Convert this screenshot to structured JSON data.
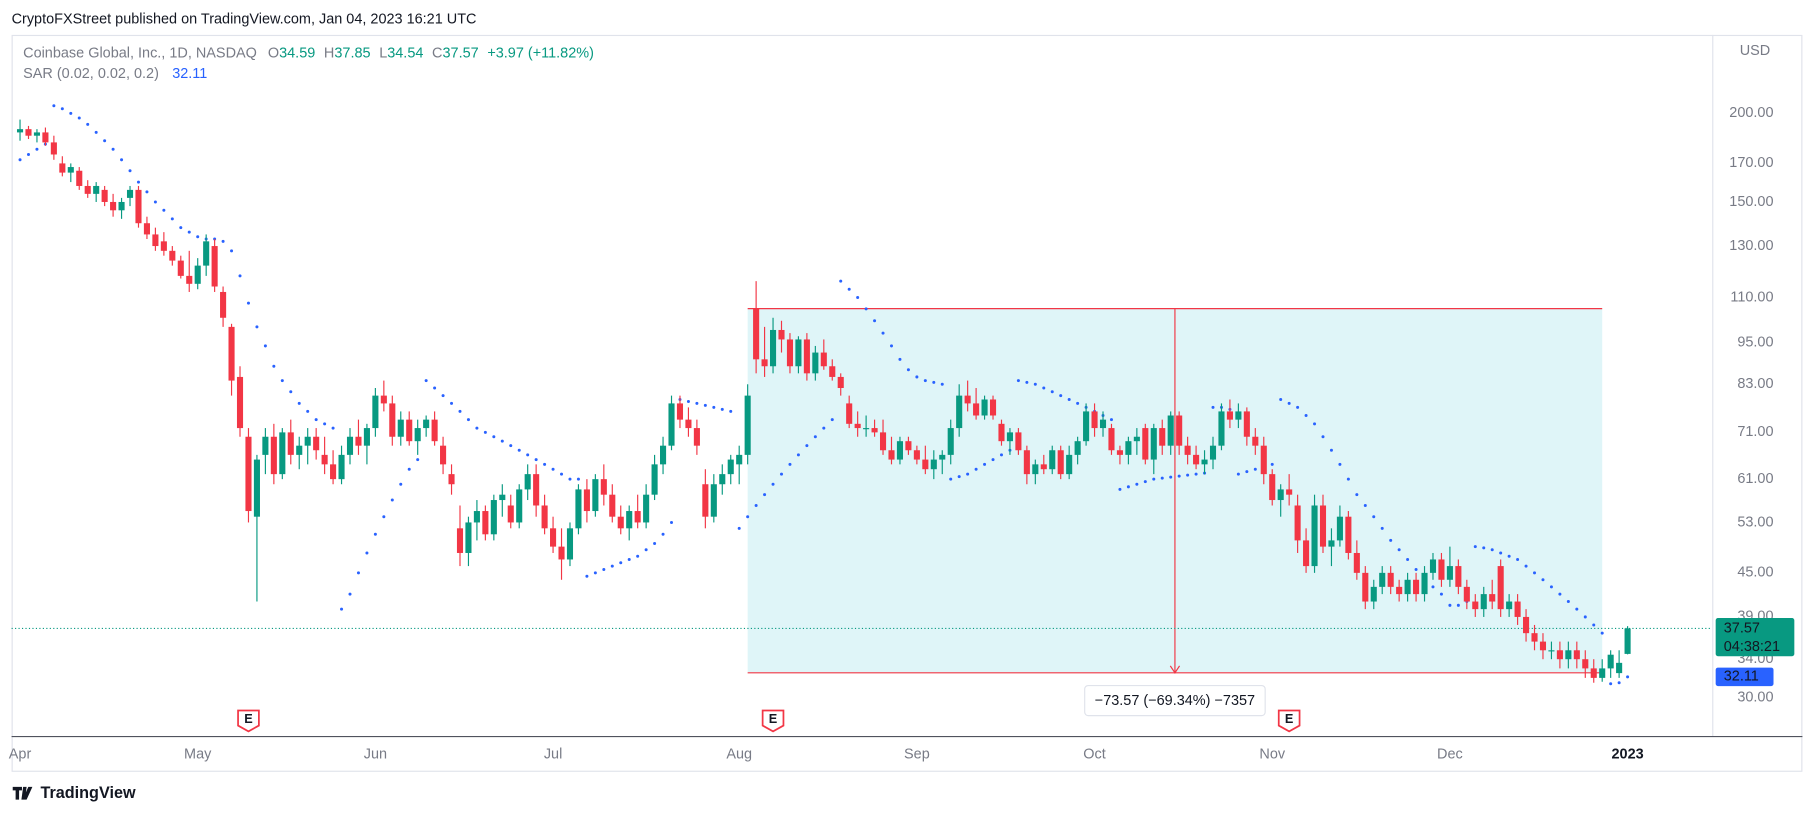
{
  "header": {
    "published": "CryptoFXStreet published on TradingView.com, Jan 04, 2023 16:21 UTC"
  },
  "brand": "TradingView",
  "chart_data": {
    "type": "candlestick",
    "title": "Coinbase Global, Inc., 1D, NASDAQ",
    "ohlc_prefixes": [
      "O",
      "H",
      "L",
      "C"
    ],
    "change_label": "+3.97 (+11.82%)",
    "currency": "USD",
    "countdown": "04:38:21",
    "up_color": "#089981",
    "down_color": "#f23645",
    "log_scale": true,
    "grid": false,
    "xlim": [
      -1,
      200
    ],
    "xticks": [
      {
        "value": 0,
        "label": "Apr"
      },
      {
        "value": 21,
        "label": "May"
      },
      {
        "value": 42,
        "label": "Jun"
      },
      {
        "value": 63,
        "label": "Jul"
      },
      {
        "value": 85,
        "label": "Aug"
      },
      {
        "value": 106,
        "label": "Sep"
      },
      {
        "value": 127,
        "label": "Oct"
      },
      {
        "value": 148,
        "label": "Nov"
      },
      {
        "value": 169,
        "label": "Dec"
      },
      {
        "value": 190,
        "label": "2023"
      }
    ],
    "ylim": [
      26.5,
      258
    ],
    "yticks": [
      {
        "value": 30,
        "label": "30.00"
      },
      {
        "value": 34,
        "label": "34.00"
      },
      {
        "value": 39,
        "label": "39.00"
      },
      {
        "value": 45,
        "label": "45.00"
      },
      {
        "value": 53,
        "label": "53.00"
      },
      {
        "value": 61,
        "label": "61.00"
      },
      {
        "value": 71,
        "label": "71.00"
      },
      {
        "value": 83,
        "label": "83.00"
      },
      {
        "value": 95,
        "label": "95.00"
      },
      {
        "value": 110,
        "label": "110.00"
      },
      {
        "value": 130,
        "label": "130.00"
      },
      {
        "value": 150,
        "label": "150.00"
      },
      {
        "value": 170,
        "label": "170.00"
      },
      {
        "value": 200,
        "label": "200.00"
      }
    ],
    "ohlc": [
      [
        188,
        196,
        183,
        190
      ],
      [
        190,
        192,
        184,
        186
      ],
      [
        186,
        190,
        182,
        188
      ],
      [
        188,
        191,
        180,
        182
      ],
      [
        182,
        186,
        172,
        175
      ],
      [
        170,
        174,
        163,
        165
      ],
      [
        165,
        170,
        160,
        168
      ],
      [
        166,
        168,
        156,
        158
      ],
      [
        158,
        161,
        152,
        154
      ],
      [
        154,
        160,
        150,
        158
      ],
      [
        156,
        158,
        148,
        150
      ],
      [
        150,
        154,
        143,
        146
      ],
      [
        146,
        152,
        142,
        150
      ],
      [
        152,
        158,
        148,
        156
      ],
      [
        156,
        158,
        138,
        140
      ],
      [
        140,
        143,
        133,
        135
      ],
      [
        135,
        138,
        128,
        130
      ],
      [
        132,
        136,
        126,
        128
      ],
      [
        128,
        130,
        122,
        124
      ],
      [
        124,
        126,
        117,
        118
      ],
      [
        118,
        128,
        112,
        115
      ],
      [
        115,
        125,
        113,
        122
      ],
      [
        122,
        135,
        118,
        132
      ],
      [
        130,
        133,
        112,
        114
      ],
      [
        112,
        114,
        100,
        103
      ],
      [
        100,
        101,
        80,
        84
      ],
      [
        85,
        88,
        70,
        72
      ],
      [
        70,
        72,
        53,
        55
      ],
      [
        54,
        66,
        41,
        65
      ],
      [
        66,
        72,
        62,
        70
      ],
      [
        70,
        73,
        60,
        62
      ],
      [
        62,
        72,
        61,
        71
      ],
      [
        71,
        74,
        64,
        66
      ],
      [
        66,
        70,
        63,
        68
      ],
      [
        68,
        72,
        64,
        70
      ],
      [
        70,
        72,
        65,
        67
      ],
      [
        66,
        70,
        62,
        64
      ],
      [
        64,
        67,
        60,
        61
      ],
      [
        61,
        68,
        60,
        66
      ],
      [
        66,
        72,
        64,
        70
      ],
      [
        70,
        74,
        66,
        68
      ],
      [
        68,
        73,
        64,
        72
      ],
      [
        72,
        82,
        70,
        80
      ],
      [
        80,
        84,
        76,
        78
      ],
      [
        78,
        80,
        68,
        70
      ],
      [
        70,
        76,
        68,
        74
      ],
      [
        74,
        76,
        68,
        69
      ],
      [
        69,
        74,
        66,
        72
      ],
      [
        72,
        75,
        70,
        74
      ],
      [
        74,
        76,
        68,
        69
      ],
      [
        68,
        70,
        62,
        64
      ],
      [
        62,
        64,
        58,
        60
      ],
      [
        52,
        56,
        46,
        48
      ],
      [
        48,
        54,
        46,
        53
      ],
      [
        53,
        57,
        50,
        55
      ],
      [
        55,
        56,
        50,
        51
      ],
      [
        51,
        58,
        50,
        57
      ],
      [
        57,
        60,
        54,
        58
      ],
      [
        56,
        58,
        52,
        53
      ],
      [
        53,
        60,
        52,
        59
      ],
      [
        59,
        64,
        57,
        62
      ],
      [
        62,
        64,
        54,
        56
      ],
      [
        56,
        58,
        51,
        52
      ],
      [
        52,
        54,
        48,
        49
      ],
      [
        49,
        52,
        44,
        47
      ],
      [
        47,
        53,
        46,
        52
      ],
      [
        52,
        60,
        51,
        59
      ],
      [
        59,
        61,
        53,
        55
      ],
      [
        55,
        62,
        54,
        61
      ],
      [
        61,
        64,
        56,
        58
      ],
      [
        58,
        60,
        53,
        54
      ],
      [
        54,
        56,
        51,
        52
      ],
      [
        52,
        56,
        50,
        55
      ],
      [
        55,
        58,
        52,
        53
      ],
      [
        53,
        60,
        52,
        58
      ],
      [
        58,
        66,
        57,
        64
      ],
      [
        64,
        70,
        62,
        68
      ],
      [
        68,
        80,
        67,
        78
      ],
      [
        78,
        80,
        72,
        74
      ],
      [
        74,
        77,
        70,
        72
      ],
      [
        72,
        74,
        66,
        68
      ],
      [
        60,
        63,
        52,
        54
      ],
      [
        54,
        62,
        53,
        60
      ],
      [
        60,
        64,
        58,
        62
      ],
      [
        62,
        66,
        60,
        65
      ],
      [
        64,
        68,
        60,
        66
      ],
      [
        66,
        83,
        64,
        80
      ],
      [
        106,
        116,
        86,
        90
      ],
      [
        90,
        100,
        85,
        88
      ],
      [
        88,
        103,
        86,
        99
      ],
      [
        99,
        102,
        92,
        96
      ],
      [
        96,
        98,
        86,
        88
      ],
      [
        88,
        97,
        86,
        96
      ],
      [
        96,
        98,
        84,
        86
      ],
      [
        86,
        94,
        84,
        92
      ],
      [
        92,
        96,
        87,
        88
      ],
      [
        88,
        90,
        84,
        85
      ],
      [
        85,
        86,
        80,
        82
      ],
      [
        78,
        80,
        72,
        73
      ],
      [
        73,
        76,
        70,
        72
      ],
      [
        72,
        75,
        70,
        72
      ],
      [
        72,
        74,
        70,
        71
      ],
      [
        71,
        74,
        66,
        67
      ],
      [
        67,
        70,
        64,
        65
      ],
      [
        65,
        70,
        64,
        69
      ],
      [
        69,
        70,
        66,
        67
      ],
      [
        67,
        68,
        64,
        65
      ],
      [
        65,
        68,
        62,
        63
      ],
      [
        63,
        67,
        61,
        65
      ],
      [
        65,
        67,
        62,
        66
      ],
      [
        66,
        74,
        64,
        72
      ],
      [
        72,
        83,
        70,
        80
      ],
      [
        80,
        84,
        76,
        78
      ],
      [
        78,
        82,
        74,
        75
      ],
      [
        75,
        80,
        74,
        79
      ],
      [
        79,
        80,
        74,
        75
      ],
      [
        73,
        74,
        68,
        69
      ],
      [
        69,
        72,
        66,
        71
      ],
      [
        71,
        72,
        66,
        67
      ],
      [
        67,
        68,
        60,
        62
      ],
      [
        62,
        65,
        60,
        64
      ],
      [
        64,
        66,
        62,
        63
      ],
      [
        63,
        68,
        62,
        67
      ],
      [
        67,
        68,
        61,
        62
      ],
      [
        62,
        68,
        61,
        66
      ],
      [
        66,
        70,
        64,
        69
      ],
      [
        69,
        78,
        68,
        76
      ],
      [
        76,
        78,
        70,
        72
      ],
      [
        72,
        76,
        70,
        74
      ],
      [
        72,
        73,
        66,
        67
      ],
      [
        67,
        68,
        64,
        66
      ],
      [
        66,
        70,
        64,
        69
      ],
      [
        69,
        72,
        66,
        70
      ],
      [
        72,
        73,
        64,
        65
      ],
      [
        65,
        73,
        62,
        72
      ],
      [
        72,
        74,
        66,
        68
      ],
      [
        68,
        76,
        66,
        75
      ],
      [
        75,
        76,
        66,
        68
      ],
      [
        68,
        70,
        64,
        66
      ],
      [
        66,
        68,
        63,
        64
      ],
      [
        64,
        67,
        62,
        65
      ],
      [
        65,
        70,
        63,
        68
      ],
      [
        68,
        78,
        67,
        76
      ],
      [
        76,
        79,
        72,
        74
      ],
      [
        74,
        78,
        72,
        76
      ],
      [
        76,
        77,
        68,
        70
      ],
      [
        70,
        72,
        66,
        68
      ],
      [
        68,
        70,
        60,
        62
      ],
      [
        62,
        63,
        56,
        57
      ],
      [
        57,
        60,
        54,
        59
      ],
      [
        59,
        62,
        56,
        58
      ],
      [
        56,
        58,
        48,
        50
      ],
      [
        50,
        52,
        45,
        46
      ],
      [
        46,
        58,
        45,
        56
      ],
      [
        56,
        58,
        48,
        49
      ],
      [
        49,
        52,
        46,
        50
      ],
      [
        50,
        56,
        49,
        54
      ],
      [
        54,
        55,
        47,
        48
      ],
      [
        48,
        50,
        44,
        45
      ],
      [
        45,
        46,
        40,
        41
      ],
      [
        41,
        44,
        40,
        43
      ],
      [
        43,
        46,
        42,
        45
      ],
      [
        45,
        46,
        42,
        43
      ],
      [
        43,
        44,
        41,
        42
      ],
      [
        42,
        45,
        41,
        44
      ],
      [
        44,
        45,
        41,
        42
      ],
      [
        42,
        46,
        41,
        45
      ],
      [
        45,
        48,
        44,
        47
      ],
      [
        47,
        48,
        43,
        44
      ],
      [
        44,
        49,
        43,
        46
      ],
      [
        46,
        47,
        42,
        43
      ],
      [
        43,
        44,
        40,
        41
      ],
      [
        41,
        42,
        39,
        40
      ],
      [
        40,
        43,
        39,
        42
      ],
      [
        42,
        44,
        40,
        41
      ],
      [
        46,
        47,
        39,
        40
      ],
      [
        40,
        42,
        39,
        41
      ],
      [
        41,
        42,
        38,
        39
      ],
      [
        39,
        40,
        36,
        37
      ],
      [
        37,
        38,
        35,
        36
      ],
      [
        36,
        37,
        34,
        35
      ],
      [
        35,
        36,
        34,
        35
      ],
      [
        35,
        36,
        33,
        34
      ],
      [
        34,
        36,
        33,
        35
      ],
      [
        35,
        36,
        33,
        34
      ],
      [
        34,
        35,
        32,
        33
      ],
      [
        33,
        34,
        31.5,
        32
      ],
      [
        32,
        34,
        31.6,
        33
      ],
      [
        33,
        35,
        32,
        34.5
      ],
      [
        32.5,
        35,
        32,
        33.6
      ],
      [
        34.59,
        37.85,
        34.54,
        37.57
      ]
    ],
    "indicator": {
      "name": "SAR (0.02, 0.02, 0.2)",
      "color": "#2962ff",
      "values": [
        172,
        175,
        178,
        181,
        205,
        203,
        200,
        197,
        193,
        188,
        183,
        178,
        172,
        166,
        160,
        155,
        150,
        146,
        142,
        138,
        136,
        134,
        133,
        133,
        132,
        128,
        118,
        108,
        100,
        94,
        88,
        84,
        81,
        78,
        76,
        74,
        73,
        72,
        40,
        42,
        45,
        48,
        51,
        54,
        57,
        60,
        63,
        65,
        84,
        82,
        80,
        78,
        76,
        74,
        72,
        71,
        70,
        69,
        68,
        67,
        66,
        65,
        64,
        63,
        62,
        61,
        61,
        44.5,
        45,
        45.5,
        46,
        46.5,
        47,
        47.5,
        48.5,
        49.5,
        51,
        53,
        79,
        78.5,
        78,
        77.5,
        77,
        76.5,
        76,
        52,
        54,
        56,
        58,
        60,
        62,
        64,
        66,
        68,
        70,
        72,
        74,
        116,
        113,
        110,
        106,
        102,
        98,
        94,
        90,
        87,
        85,
        84,
        83.5,
        83,
        61,
        61.5,
        62,
        63,
        64,
        65,
        66,
        67,
        84,
        83.5,
        83,
        82,
        81,
        80,
        79,
        78,
        77,
        76,
        75,
        74,
        59,
        59.5,
        60,
        60.5,
        61,
        61.2,
        61.4,
        61.6,
        61.8,
        62,
        62.2,
        77,
        77,
        76.5,
        62,
        62.5,
        63,
        63.5,
        64,
        79,
        78,
        77,
        75,
        73,
        70,
        67,
        64,
        61,
        58,
        56,
        54,
        52,
        50,
        48.5,
        47,
        45.5,
        44,
        43,
        42,
        40.5,
        40.5,
        41,
        49,
        48.8,
        48.5,
        48,
        47.5,
        47,
        46,
        45,
        44,
        43,
        42,
        41,
        40,
        39,
        38,
        37,
        31.4,
        31.5,
        32.11
      ]
    },
    "measure": {
      "start_index": 86,
      "end_index": 187,
      "from_price": 106.1,
      "to_price": 32.53,
      "fill": "#dff5f8",
      "color": "#f23645",
      "label": "−73.57 (−69.34%) −7357"
    },
    "earnings": {
      "label": "E",
      "indexes": [
        27,
        89,
        150
      ],
      "color": "#f23645"
    }
  }
}
